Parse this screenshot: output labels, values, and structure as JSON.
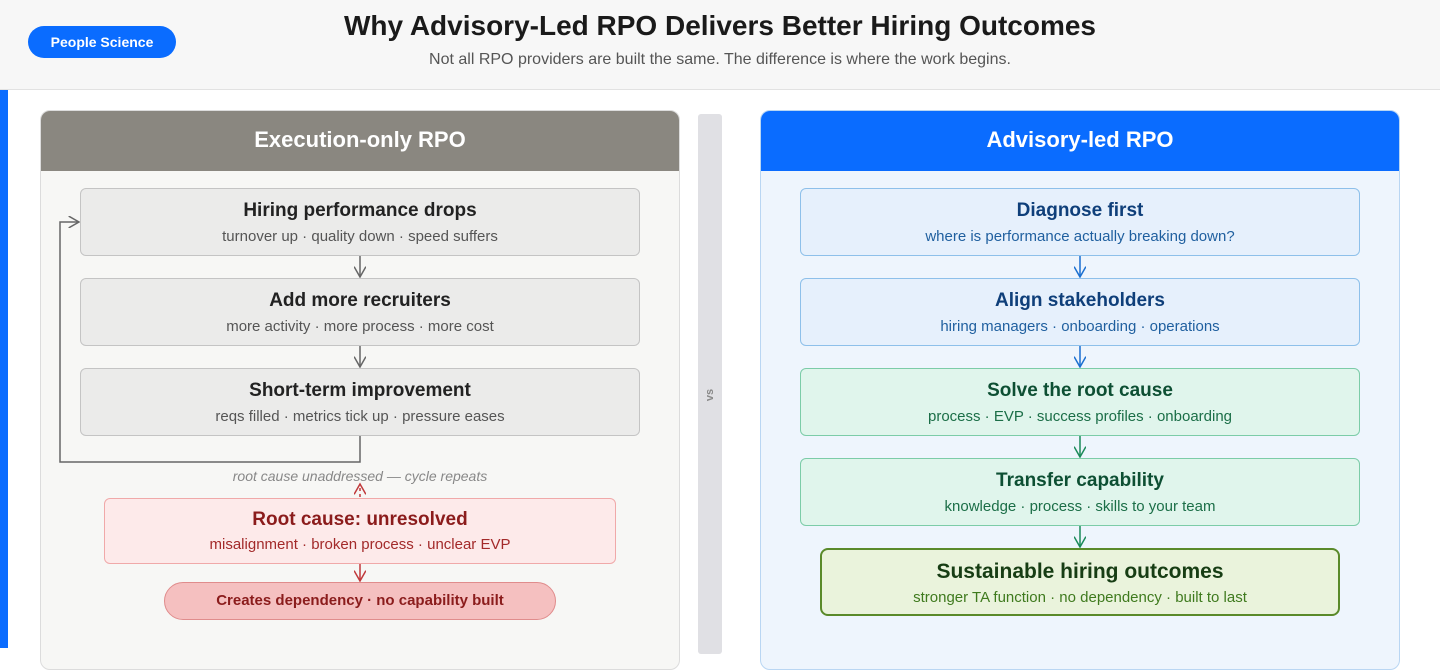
{
  "header": {
    "badge": "People Science",
    "title": "Why Advisory-Led RPO Delivers Better Hiring Outcomes",
    "subtitle": "Not all RPO providers are built the same. The difference is where the work begins."
  },
  "left": {
    "title": "Execution-only RPO",
    "steps": [
      {
        "title": "Hiring performance drops",
        "detail": "turnover up · quality down · speed suffers"
      },
      {
        "title": "Add more recruiters",
        "detail": "more activity · more process · more cost"
      },
      {
        "title": "Short-term improvement",
        "detail": "reqs filled · metrics tick up · pressure eases"
      }
    ],
    "loop_label": "root cause unaddressed — cycle repeats",
    "root_cause": {
      "title": "Root cause: unresolved",
      "detail": "misalignment · broken process · unclear EVP"
    },
    "outcome": "Creates dependency · no capability built"
  },
  "vs": "vs",
  "right": {
    "title": "Advisory-led RPO",
    "steps": [
      {
        "title": "Diagnose first",
        "detail": "where is performance actually breaking down?"
      },
      {
        "title": "Align stakeholders",
        "detail": "hiring managers · onboarding · operations"
      },
      {
        "title": "Solve the root cause",
        "detail": "process · EVP · success profiles · onboarding"
      },
      {
        "title": "Transfer capability",
        "detail": "knowledge · process · skills to your team"
      }
    ],
    "outcome": {
      "title": "Sustainable hiring outcomes",
      "detail": "stronger TA function · no dependency · built to last"
    }
  }
}
